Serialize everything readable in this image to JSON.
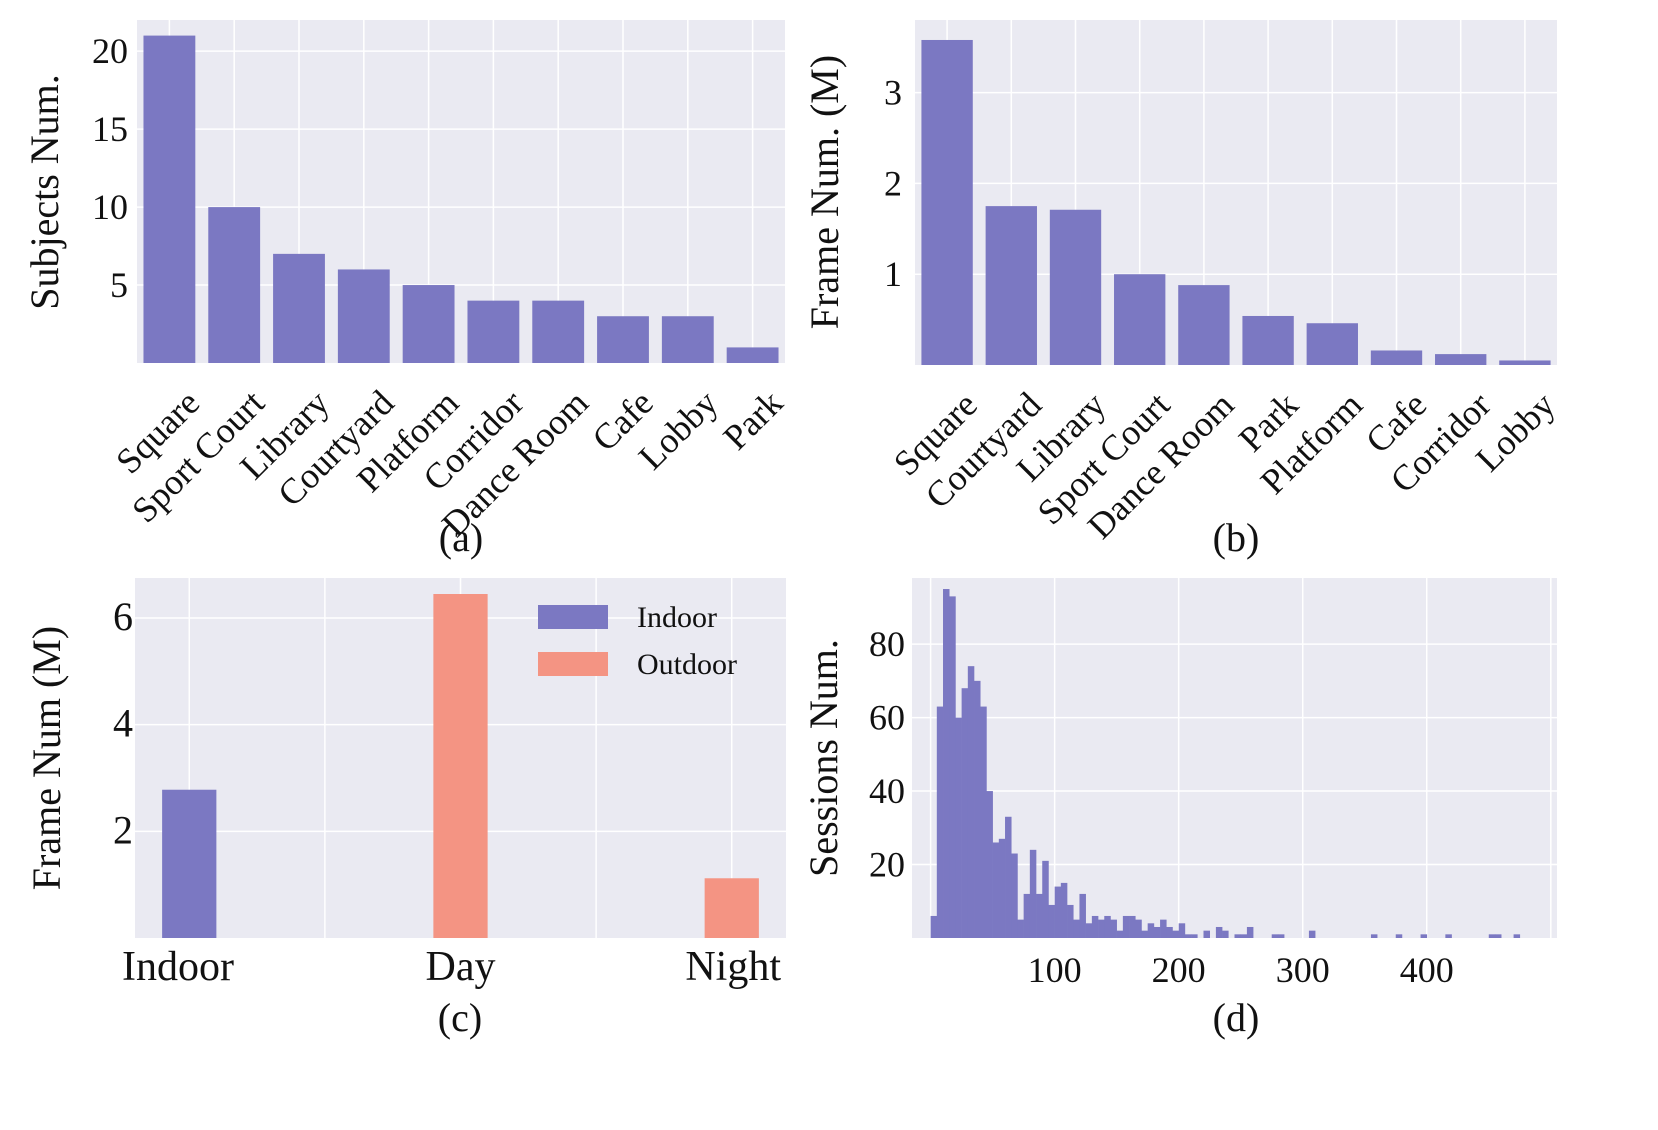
{
  "colors": {
    "indoor": "#7b78c2",
    "outdoor": "#f49483",
    "panel_bg": "#eaeaf2",
    "grid": "#ffffff"
  },
  "chart_data": [
    {
      "id": "a",
      "type": "bar",
      "caption": "(a)",
      "ylabel": "Subjects Num.",
      "categories": [
        "Square",
        "Sport Court",
        "Library",
        "Courtyard",
        "Platform",
        "Corridor",
        "Dance Room",
        "Cafe",
        "Lobby",
        "Park"
      ],
      "values": [
        21,
        10,
        7,
        6,
        5,
        4,
        4,
        3,
        3,
        1
      ],
      "yticks": [
        5,
        10,
        15,
        20
      ],
      "ylim": [
        0,
        22
      ],
      "grid": true
    },
    {
      "id": "b",
      "type": "bar",
      "caption": "(b)",
      "ylabel": "Frame Num. (M)",
      "categories": [
        "Square",
        "Courtyard",
        "Library",
        "Sport Court",
        "Dance Room",
        "Park",
        "Platform",
        "Cafe",
        "Corridor",
        "Lobby"
      ],
      "values": [
        3.58,
        1.75,
        1.71,
        1.0,
        0.88,
        0.54,
        0.46,
        0.16,
        0.12,
        0.05
      ],
      "yticks": [
        1,
        2,
        3
      ],
      "ylim": [
        0,
        3.8
      ],
      "grid": true
    },
    {
      "id": "c",
      "type": "bar",
      "caption": "(c)",
      "ylabel": "Frame Num (M)",
      "categories": [
        "Indoor",
        "Day",
        "Night"
      ],
      "series": [
        {
          "name": "Indoor",
          "values": [
            2.78,
            0,
            0
          ]
        },
        {
          "name": "Outdoor",
          "values": [
            0,
            6.45,
            1.12
          ]
        }
      ],
      "yticks": [
        2,
        4,
        6
      ],
      "ylim": [
        0,
        6.75
      ],
      "legend": "top-right",
      "grid": true
    },
    {
      "id": "d",
      "type": "bar",
      "caption": "(d)",
      "ylabel": "Sessions Num.",
      "xticks": [
        100,
        200,
        300,
        400
      ],
      "xlim": [
        -15,
        505
      ],
      "yticks": [
        20,
        40,
        60,
        80
      ],
      "ylim": [
        0,
        98
      ],
      "bin_width": 5,
      "x": [
        0,
        5,
        10,
        15,
        20,
        25,
        30,
        35,
        40,
        45,
        50,
        55,
        60,
        65,
        70,
        75,
        80,
        85,
        90,
        95,
        100,
        105,
        110,
        115,
        120,
        125,
        130,
        135,
        140,
        145,
        150,
        155,
        160,
        165,
        170,
        175,
        180,
        185,
        190,
        195,
        200,
        205,
        210,
        215,
        220,
        225,
        230,
        235,
        240,
        245,
        250,
        255,
        260,
        265,
        270,
        275,
        280,
        285,
        290,
        295,
        300,
        305,
        310,
        315,
        320,
        325,
        330,
        335,
        340,
        345,
        350,
        355,
        360,
        365,
        370,
        375,
        380,
        385,
        390,
        395,
        400,
        405,
        410,
        415,
        420,
        425,
        430,
        435,
        440,
        445,
        450,
        455,
        460,
        465,
        470
      ],
      "values": [
        6,
        63,
        95,
        93,
        60,
        68,
        74,
        70,
        63,
        40,
        26,
        27,
        33,
        23,
        5,
        12,
        24,
        12,
        21,
        9,
        14,
        15,
        9,
        5,
        12,
        4,
        6,
        5,
        6,
        5,
        2,
        6,
        6,
        5,
        2,
        4,
        3,
        5,
        3,
        2,
        4,
        1,
        1,
        0,
        2,
        0,
        3,
        2,
        0,
        1,
        1,
        3,
        0,
        0,
        0,
        1,
        1,
        0,
        0,
        0,
        0,
        2,
        0,
        0,
        0,
        0,
        0,
        0,
        0,
        0,
        0,
        1,
        0,
        0,
        0,
        1,
        0,
        0,
        0,
        1,
        0,
        0,
        0,
        1,
        0,
        0,
        0,
        0,
        0,
        0,
        1,
        1,
        0,
        0,
        1
      ],
      "grid": true
    }
  ]
}
